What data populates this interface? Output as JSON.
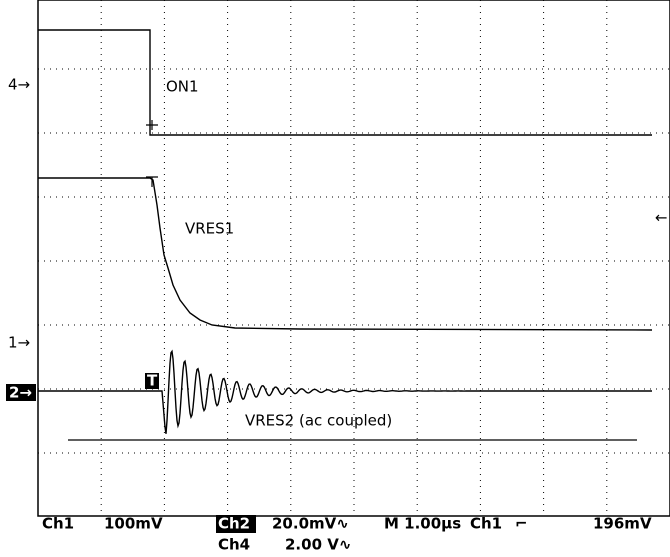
{
  "markers": {
    "ch4": "4→",
    "ch1": "1→",
    "ch2": "2→",
    "trigger": "T",
    "trigger_level": "←"
  },
  "traces": [
    "ON1",
    "VRES1",
    "VRES2 (ac coupled)"
  ],
  "status": {
    "row1": [
      "Ch1",
      "100mV",
      "Ch2",
      "20.0mV∿",
      "M 1.00µs",
      "Ch1",
      "⌐",
      "196mV"
    ],
    "row2": [
      "Ch4",
      "2.00 V∿"
    ]
  }
}
